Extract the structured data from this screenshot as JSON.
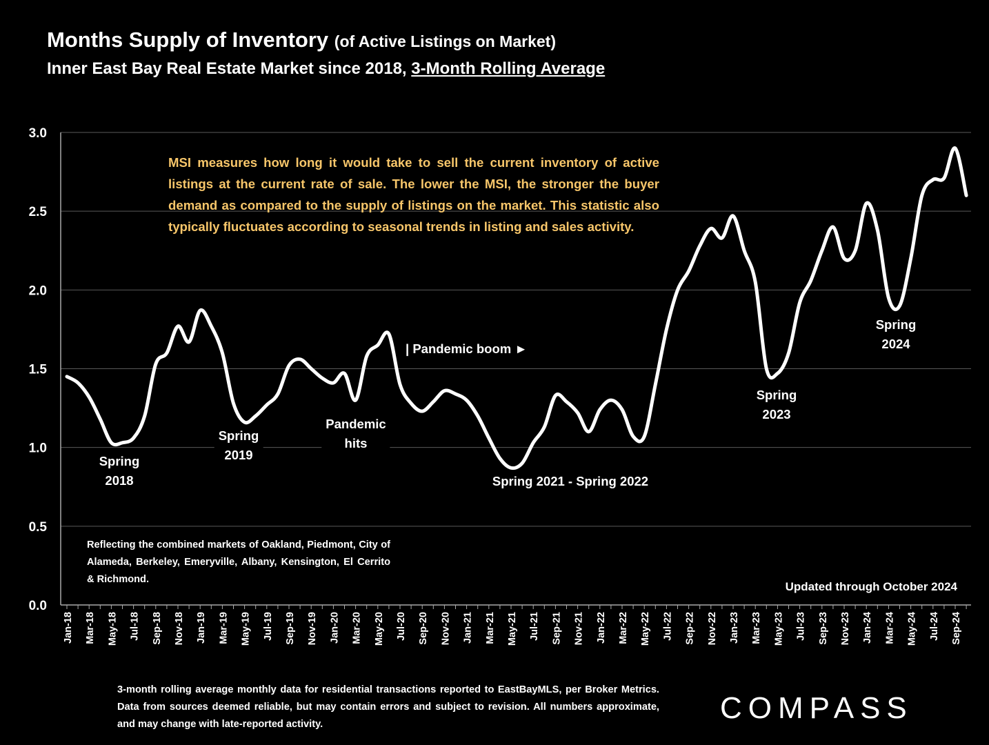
{
  "chart_data": {
    "type": "line",
    "title": "Months Supply of Inventory",
    "title_suffix": "(of Active Listings on Market)",
    "subtitle": "Inner East Bay Real Estate Market since 2018,",
    "subtitle_emphasis": "3-Month Rolling Average",
    "callout": "MSI measures how long it would take to sell the current inventory of active listings at the current rate of sale. The lower the MSI, the stronger the buyer demand as compared to the supply of listings on the market. This statistic also typically fluctuates according to seasonal trends in listing and sales activity.",
    "note": "Reflecting the combined markets of Oakland, Piedmont, City of Alameda, Berkeley, Emeryville, Albany, Kensington, El Cerrito & Richmond.",
    "updated": "Updated through October 2024",
    "footer": "3-month rolling average monthly data for residential transactions reported to EastBayMLS, per Broker Metrics. Data from sources deemed reliable, but may contain errors and subject to revision. All numbers approximate, and may change with late-reported activity.",
    "logo": "COMPASS",
    "annotations": [
      {
        "lines": [
          "Spring",
          "2018"
        ]
      },
      {
        "lines": [
          "Spring",
          "2019"
        ]
      },
      {
        "lines": [
          "Pandemic",
          "hits"
        ]
      },
      {
        "lines": [
          "| Pandemic boom ►"
        ]
      },
      {
        "lines": [
          "Spring 2021 - Spring 2022"
        ]
      },
      {
        "lines": [
          "Spring",
          "2023"
        ]
      },
      {
        "lines": [
          "Spring",
          "2024"
        ]
      }
    ],
    "categories": [
      "Jan-18",
      null,
      "Mar-18",
      null,
      "May-18",
      null,
      "Jul-18",
      null,
      "Sep-18",
      null,
      "Nov-18",
      null,
      "Jan-19",
      null,
      "Mar-19",
      null,
      "May-19",
      null,
      "Jul-19",
      null,
      "Sep-19",
      null,
      "Nov-19",
      null,
      "Jan-20",
      null,
      "Mar-20",
      null,
      "May-20",
      null,
      "Jul-20",
      null,
      "Sep-20",
      null,
      "Nov-20",
      null,
      "Jan-21",
      null,
      "Mar-21",
      null,
      "May-21",
      null,
      "Jul-21",
      null,
      "Sep-21",
      null,
      "Nov-21",
      null,
      "Jan-22",
      null,
      "Mar-22",
      null,
      "May-22",
      null,
      "Jul-22",
      null,
      "Sep-22",
      null,
      "Nov-22",
      null,
      "Jan-23",
      null,
      "Mar-23",
      null,
      "May-23",
      null,
      "Jul-23",
      null,
      "Sep-23",
      null,
      "Nov-23",
      null,
      "Jan-24",
      null,
      "Mar-24",
      null,
      "May-24",
      null,
      "Jul-24",
      null,
      "Sep-24",
      null
    ],
    "values": [
      1.45,
      1.41,
      1.32,
      1.18,
      1.03,
      1.03,
      1.06,
      1.2,
      1.53,
      1.6,
      1.77,
      1.67,
      1.87,
      1.77,
      1.6,
      1.28,
      1.16,
      1.2,
      1.27,
      1.34,
      1.52,
      1.56,
      1.5,
      1.44,
      1.41,
      1.47,
      1.3,
      1.58,
      1.65,
      1.72,
      1.4,
      1.28,
      1.23,
      1.29,
      1.36,
      1.34,
      1.3,
      1.2,
      1.06,
      0.93,
      0.87,
      0.9,
      1.03,
      1.13,
      1.33,
      1.29,
      1.22,
      1.1,
      1.24,
      1.3,
      1.24,
      1.07,
      1.07,
      1.4,
      1.75,
      2.0,
      2.12,
      2.28,
      2.39,
      2.33,
      2.47,
      2.25,
      2.05,
      1.5,
      1.47,
      1.6,
      1.92,
      2.06,
      2.25,
      2.4,
      2.2,
      2.25,
      2.55,
      2.38,
      1.95,
      1.9,
      2.2,
      2.6,
      2.7,
      2.71,
      2.9,
      2.6
    ],
    "color": "#ffffff",
    "ylim": [
      0,
      3
    ],
    "yticks": [
      {
        "value": 0,
        "label": "0.0"
      },
      {
        "value": 0.5,
        "label": "0.5"
      },
      {
        "value": 1,
        "label": "1.0"
      },
      {
        "value": 1.5,
        "label": "1.5"
      },
      {
        "value": 2,
        "label": "2.0"
      },
      {
        "value": 2.5,
        "label": "2.5"
      },
      {
        "value": 3,
        "label": "3.0"
      }
    ],
    "grid": true
  }
}
